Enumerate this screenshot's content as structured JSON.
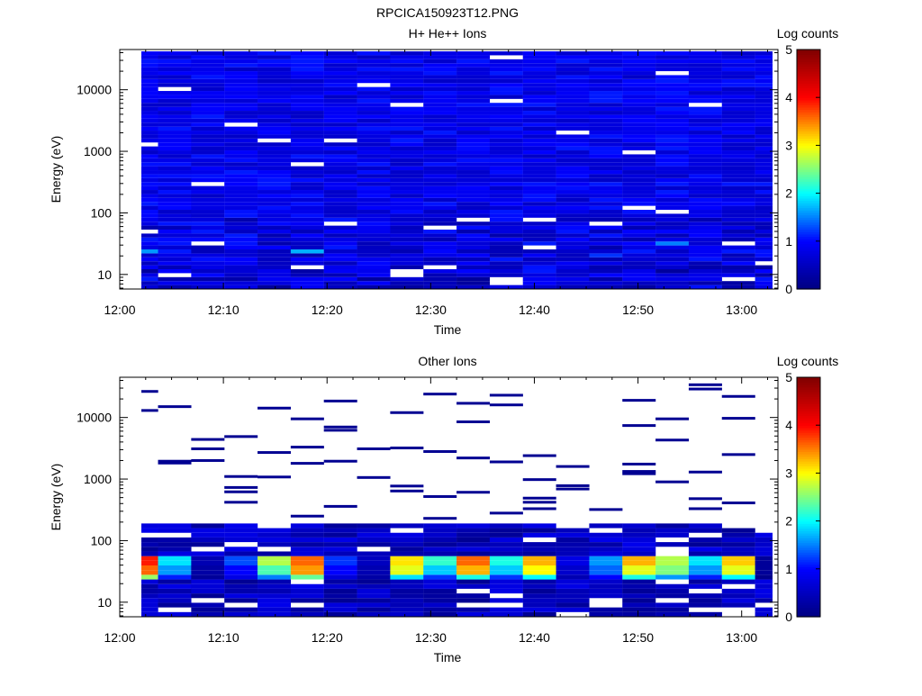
{
  "figure_title": "RPCICA150923T12.PNG",
  "colorbar_label": "Log counts",
  "colorbar_ticks": [
    "0",
    "1",
    "2",
    "3",
    "4",
    "5"
  ],
  "colorbar_range": [
    0,
    5
  ],
  "colorscale": [
    "#00007f",
    "#0000ff",
    "#00ffff",
    "#ffff00",
    "#ff0000",
    "#7f0000"
  ],
  "chart_data": [
    {
      "type": "heatmap",
      "title": "H+ He++ Ions",
      "xlabel": "Time",
      "ylabel": "Energy (eV)",
      "x_ticks": [
        "12:00",
        "12:10",
        "12:20",
        "12:30",
        "12:40",
        "12:50",
        "13:00"
      ],
      "x_tick_minutes": [
        0,
        10,
        20,
        30,
        40,
        50,
        60
      ],
      "xlim_minutes": [
        0,
        63.5
      ],
      "y_scale": "log",
      "y_ticks": [
        "10",
        "100",
        "1000",
        "10000"
      ],
      "y_tick_values": [
        10,
        100,
        1000,
        10000
      ],
      "ylim": [
        5.8,
        45000
      ],
      "time_bins_minutes": [
        2.1,
        5.3,
        8.5,
        11.7,
        14.9,
        18.1,
        21.3,
        24.5,
        27.7,
        30.9,
        34.1,
        37.3,
        40.5,
        43.7,
        46.9,
        50.1,
        53.3,
        56.5,
        59.7,
        62.9
      ],
      "energy_range_ev": [
        5.8,
        42000
      ],
      "energy_bins": 60,
      "log_counts_typical": [
        0.2,
        1.1
      ],
      "empty_cells": [
        [
          0,
          36,
          37
        ],
        [
          0,
          14,
          15
        ],
        [
          1,
          3,
          4
        ],
        [
          1,
          50,
          51
        ],
        [
          2,
          26,
          27
        ],
        [
          2,
          11,
          12
        ],
        [
          3,
          41,
          42
        ],
        [
          4,
          37,
          38
        ],
        [
          5,
          5,
          6
        ],
        [
          5,
          31,
          32
        ],
        [
          6,
          37,
          38
        ],
        [
          6,
          16,
          17
        ],
        [
          7,
          51,
          52
        ],
        [
          8,
          3,
          5
        ],
        [
          8,
          46,
          47
        ],
        [
          9,
          15,
          16
        ],
        [
          9,
          5,
          6
        ],
        [
          10,
          17,
          18
        ],
        [
          11,
          58,
          59
        ],
        [
          11,
          1,
          3
        ],
        [
          11,
          47,
          48
        ],
        [
          12,
          10,
          11
        ],
        [
          12,
          17,
          18
        ],
        [
          13,
          39,
          40
        ],
        [
          14,
          16,
          17
        ],
        [
          15,
          34,
          35
        ],
        [
          15,
          20,
          21
        ],
        [
          16,
          54,
          55
        ],
        [
          16,
          19,
          20
        ],
        [
          17,
          46,
          47
        ],
        [
          18,
          11,
          12
        ],
        [
          18,
          2,
          3
        ],
        [
          19,
          6,
          7
        ]
      ],
      "bright_cells": [
        [
          0,
          9,
          10,
          1.6
        ],
        [
          5,
          9,
          10,
          1.7
        ],
        [
          16,
          11,
          12,
          1.5
        ],
        [
          14,
          8,
          9,
          1.2
        ]
      ]
    },
    {
      "type": "heatmap",
      "title": "Other Ions",
      "xlabel": "Time",
      "ylabel": "Energy (eV)",
      "x_ticks": [
        "12:00",
        "12:10",
        "12:20",
        "12:30",
        "12:40",
        "12:50",
        "13:00"
      ],
      "x_tick_minutes": [
        0,
        10,
        20,
        30,
        40,
        50,
        60
      ],
      "xlim_minutes": [
        0,
        63.5
      ],
      "y_scale": "log",
      "y_ticks": [
        "10",
        "100",
        "1000",
        "10000"
      ],
      "y_tick_values": [
        10,
        100,
        1000,
        10000
      ],
      "ylim": [
        5.8,
        45000
      ],
      "time_bins_minutes": [
        2.1,
        5.3,
        8.5,
        11.7,
        14.9,
        18.1,
        21.3,
        24.5,
        27.7,
        30.9,
        34.1,
        37.3,
        40.5,
        43.7,
        46.9,
        50.1,
        53.3,
        56.5,
        59.7,
        62.9
      ],
      "low_energy_band_ev": [
        5.8,
        190
      ],
      "peak_band_ev": [
        22,
        55
      ],
      "peak_log_counts": [
        [
          3.9,
          3.6,
          2.6
        ],
        [
          1.9,
          1.6,
          1.1
        ],
        [
          0.4,
          0.3,
          0.2
        ],
        [
          1.3,
          1.0,
          0.8
        ],
        [
          2.7,
          2.3,
          1.5
        ],
        [
          3.6,
          3.4,
          2.4
        ],
        [
          1.2,
          1.0,
          0.7
        ],
        [
          0.5,
          0.4,
          0.3
        ],
        [
          3.1,
          2.9,
          1.9
        ],
        [
          2.2,
          1.8,
          1.2
        ],
        [
          3.6,
          3.3,
          2.1
        ],
        [
          2.1,
          1.8,
          1.2
        ],
        [
          3.3,
          3.0,
          2.0
        ],
        [
          0.8,
          0.6,
          0.4
        ],
        [
          1.6,
          1.4,
          1.0
        ],
        [
          3.3,
          2.9,
          2.1
        ],
        [
          2.7,
          2.5,
          1.6
        ],
        [
          1.9,
          1.6,
          1.1
        ],
        [
          3.2,
          2.9,
          2.0
        ],
        [
          0.2,
          0.2,
          0.1
        ]
      ],
      "sparse_lines": [
        [
          0,
          26500
        ],
        [
          0,
          13000
        ],
        [
          1,
          15000
        ],
        [
          1,
          1950
        ],
        [
          1,
          1820
        ],
        [
          2,
          4400
        ],
        [
          2,
          3100
        ],
        [
          2,
          2000
        ],
        [
          3,
          4900
        ],
        [
          3,
          1100
        ],
        [
          3,
          730
        ],
        [
          3,
          620
        ],
        [
          3,
          420
        ],
        [
          4,
          14200
        ],
        [
          4,
          2700
        ],
        [
          4,
          1080
        ],
        [
          5,
          9500
        ],
        [
          5,
          3300
        ],
        [
          5,
          1800
        ],
        [
          5,
          250
        ],
        [
          6,
          18500
        ],
        [
          6,
          7000
        ],
        [
          6,
          6200
        ],
        [
          6,
          1950
        ],
        [
          6,
          360
        ],
        [
          7,
          3100
        ],
        [
          7,
          1060
        ],
        [
          8,
          12000
        ],
        [
          8,
          3200
        ],
        [
          8,
          770
        ],
        [
          8,
          640
        ],
        [
          9,
          24000
        ],
        [
          9,
          2800
        ],
        [
          9,
          520
        ],
        [
          9,
          230
        ],
        [
          10,
          17000
        ],
        [
          10,
          8500
        ],
        [
          10,
          2200
        ],
        [
          10,
          610
        ],
        [
          11,
          23000
        ],
        [
          11,
          16000
        ],
        [
          11,
          1900
        ],
        [
          11,
          280
        ],
        [
          12,
          2400
        ],
        [
          12,
          980
        ],
        [
          12,
          490
        ],
        [
          12,
          420
        ],
        [
          12,
          330
        ],
        [
          13,
          1600
        ],
        [
          13,
          780
        ],
        [
          13,
          690
        ],
        [
          14,
          320
        ],
        [
          15,
          19000
        ],
        [
          15,
          7400
        ],
        [
          15,
          1750
        ],
        [
          15,
          1330
        ],
        [
          15,
          1220
        ],
        [
          16,
          9500
        ],
        [
          16,
          4300
        ],
        [
          16,
          900
        ],
        [
          17,
          34000
        ],
        [
          17,
          29000
        ],
        [
          17,
          1300
        ],
        [
          17,
          480
        ],
        [
          17,
          330
        ],
        [
          18,
          22000
        ],
        [
          18,
          9700
        ],
        [
          18,
          2500
        ],
        [
          18,
          410
        ]
      ]
    }
  ]
}
